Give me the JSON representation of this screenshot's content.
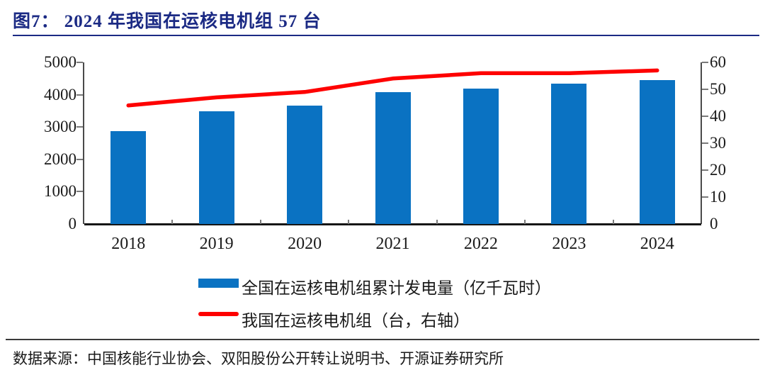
{
  "title": {
    "text": "图7： 2024 年我国在运核电机组 57 台"
  },
  "source": {
    "text": "数据来源：中国核能行业协会、双阳股份公开转让说明书、开源证券研究所"
  },
  "colors": {
    "accent_navy": "#1b2a84",
    "bar_blue": "#0a72c2",
    "line_red": "#fe0000",
    "axis_text": "#1a1a1a"
  },
  "chart_data": {
    "type": "combo",
    "categories": [
      "2018",
      "2019",
      "2020",
      "2021",
      "2022",
      "2023",
      "2024"
    ],
    "series": [
      {
        "name": "全国在运核电机组累计发电量（亿千瓦时）",
        "type": "bar",
        "axis": "left",
        "color": "#0a72c2",
        "values": [
          2865,
          3481,
          3662,
          4071,
          4178,
          4334,
          4447
        ]
      },
      {
        "name": "我国在运核电机组（台，右轴）",
        "type": "line",
        "axis": "right",
        "color": "#fe0000",
        "values": [
          44,
          47,
          49,
          54,
          56,
          56,
          57
        ]
      }
    ],
    "title": "2024 年我国在运核电机组 57 台",
    "xlabel": "",
    "ylabel_left": "亿千瓦时",
    "ylabel_right": "台",
    "left_axis": {
      "min": 0,
      "max": 5000,
      "ticks": [
        0,
        1000,
        2000,
        3000,
        4000,
        5000
      ]
    },
    "right_axis": {
      "min": 0,
      "max": 60,
      "ticks": [
        0,
        10,
        20,
        30,
        40,
        50,
        60
      ]
    },
    "grid": false,
    "legend_position": "bottom"
  }
}
